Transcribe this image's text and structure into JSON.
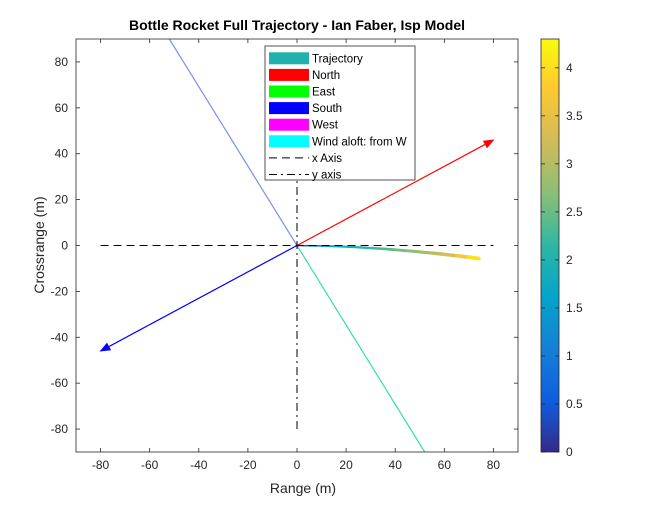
{
  "chart_data": {
    "type": "line",
    "title": "Bottle Rocket Full Trajectory - Ian Faber, Isp Model",
    "xlabel": "Range (m)",
    "ylabel": "Crossrange (m)",
    "xlim": [
      -90,
      90
    ],
    "ylim": [
      -90,
      90
    ],
    "xticks": [
      -80,
      -60,
      -40,
      -20,
      0,
      20,
      40,
      60,
      80
    ],
    "yticks": [
      -80,
      -60,
      -40,
      -20,
      0,
      20,
      40,
      60,
      80
    ],
    "grid": false,
    "legend_position": "top-center",
    "colorbar": {
      "range": [
        0,
        4.3
      ],
      "ticks": [
        0,
        0.5,
        1,
        1.5,
        2,
        2.5,
        3,
        3.5,
        4
      ],
      "colormap": "parula"
    },
    "series": [
      {
        "name": "Trajectory",
        "color": "#20b2aa",
        "x": [
          0,
          5,
          10,
          15,
          20,
          25,
          30,
          35,
          40,
          45,
          50,
          55,
          60,
          65,
          70,
          74
        ],
        "y": [
          0,
          -0.1,
          -0.2,
          -0.35,
          -0.55,
          -0.8,
          -1.1,
          -1.45,
          -1.85,
          -2.3,
          -2.8,
          -3.3,
          -3.85,
          -4.45,
          -5.1,
          -5.7
        ],
        "color_values": [
          0,
          0.9,
          1.3,
          1.6,
          1.8,
          2.0,
          2.15,
          2.3,
          2.45,
          2.6,
          2.8,
          3.0,
          3.2,
          3.5,
          3.85,
          4.2
        ]
      },
      {
        "name": "North",
        "color": "#ff0000",
        "x": [
          0,
          80
        ],
        "y": [
          0,
          46
        ]
      },
      {
        "name": "East",
        "color": "#00ff00",
        "x": [
          0,
          0
        ],
        "y": [
          0,
          0
        ]
      },
      {
        "name": "South",
        "color": "#0000ff",
        "x": [
          0,
          -80
        ],
        "y": [
          0,
          -46
        ]
      },
      {
        "name": "West",
        "color": "#ff00ff",
        "x": [
          0,
          0
        ],
        "y": [
          0,
          0
        ]
      },
      {
        "name": "Wind aloft: from W",
        "color": "#00ffff",
        "x": [
          0,
          0
        ],
        "y": [
          0,
          0
        ]
      },
      {
        "name": "x Axis",
        "color": "#000000",
        "dash": "dashed",
        "x": [
          -80,
          80
        ],
        "y": [
          0,
          0
        ]
      },
      {
        "name": "y axis",
        "color": "#000000",
        "dash": "dashdot",
        "x": [
          0,
          0
        ],
        "y": [
          -80,
          80
        ]
      }
    ],
    "other_lines": [
      {
        "color": "#7f8fe8",
        "x": [
          0,
          -52
        ],
        "y": [
          0,
          90
        ]
      },
      {
        "color": "#30e0a8",
        "x": [
          0,
          52
        ],
        "y": [
          0,
          -90
        ]
      }
    ]
  }
}
